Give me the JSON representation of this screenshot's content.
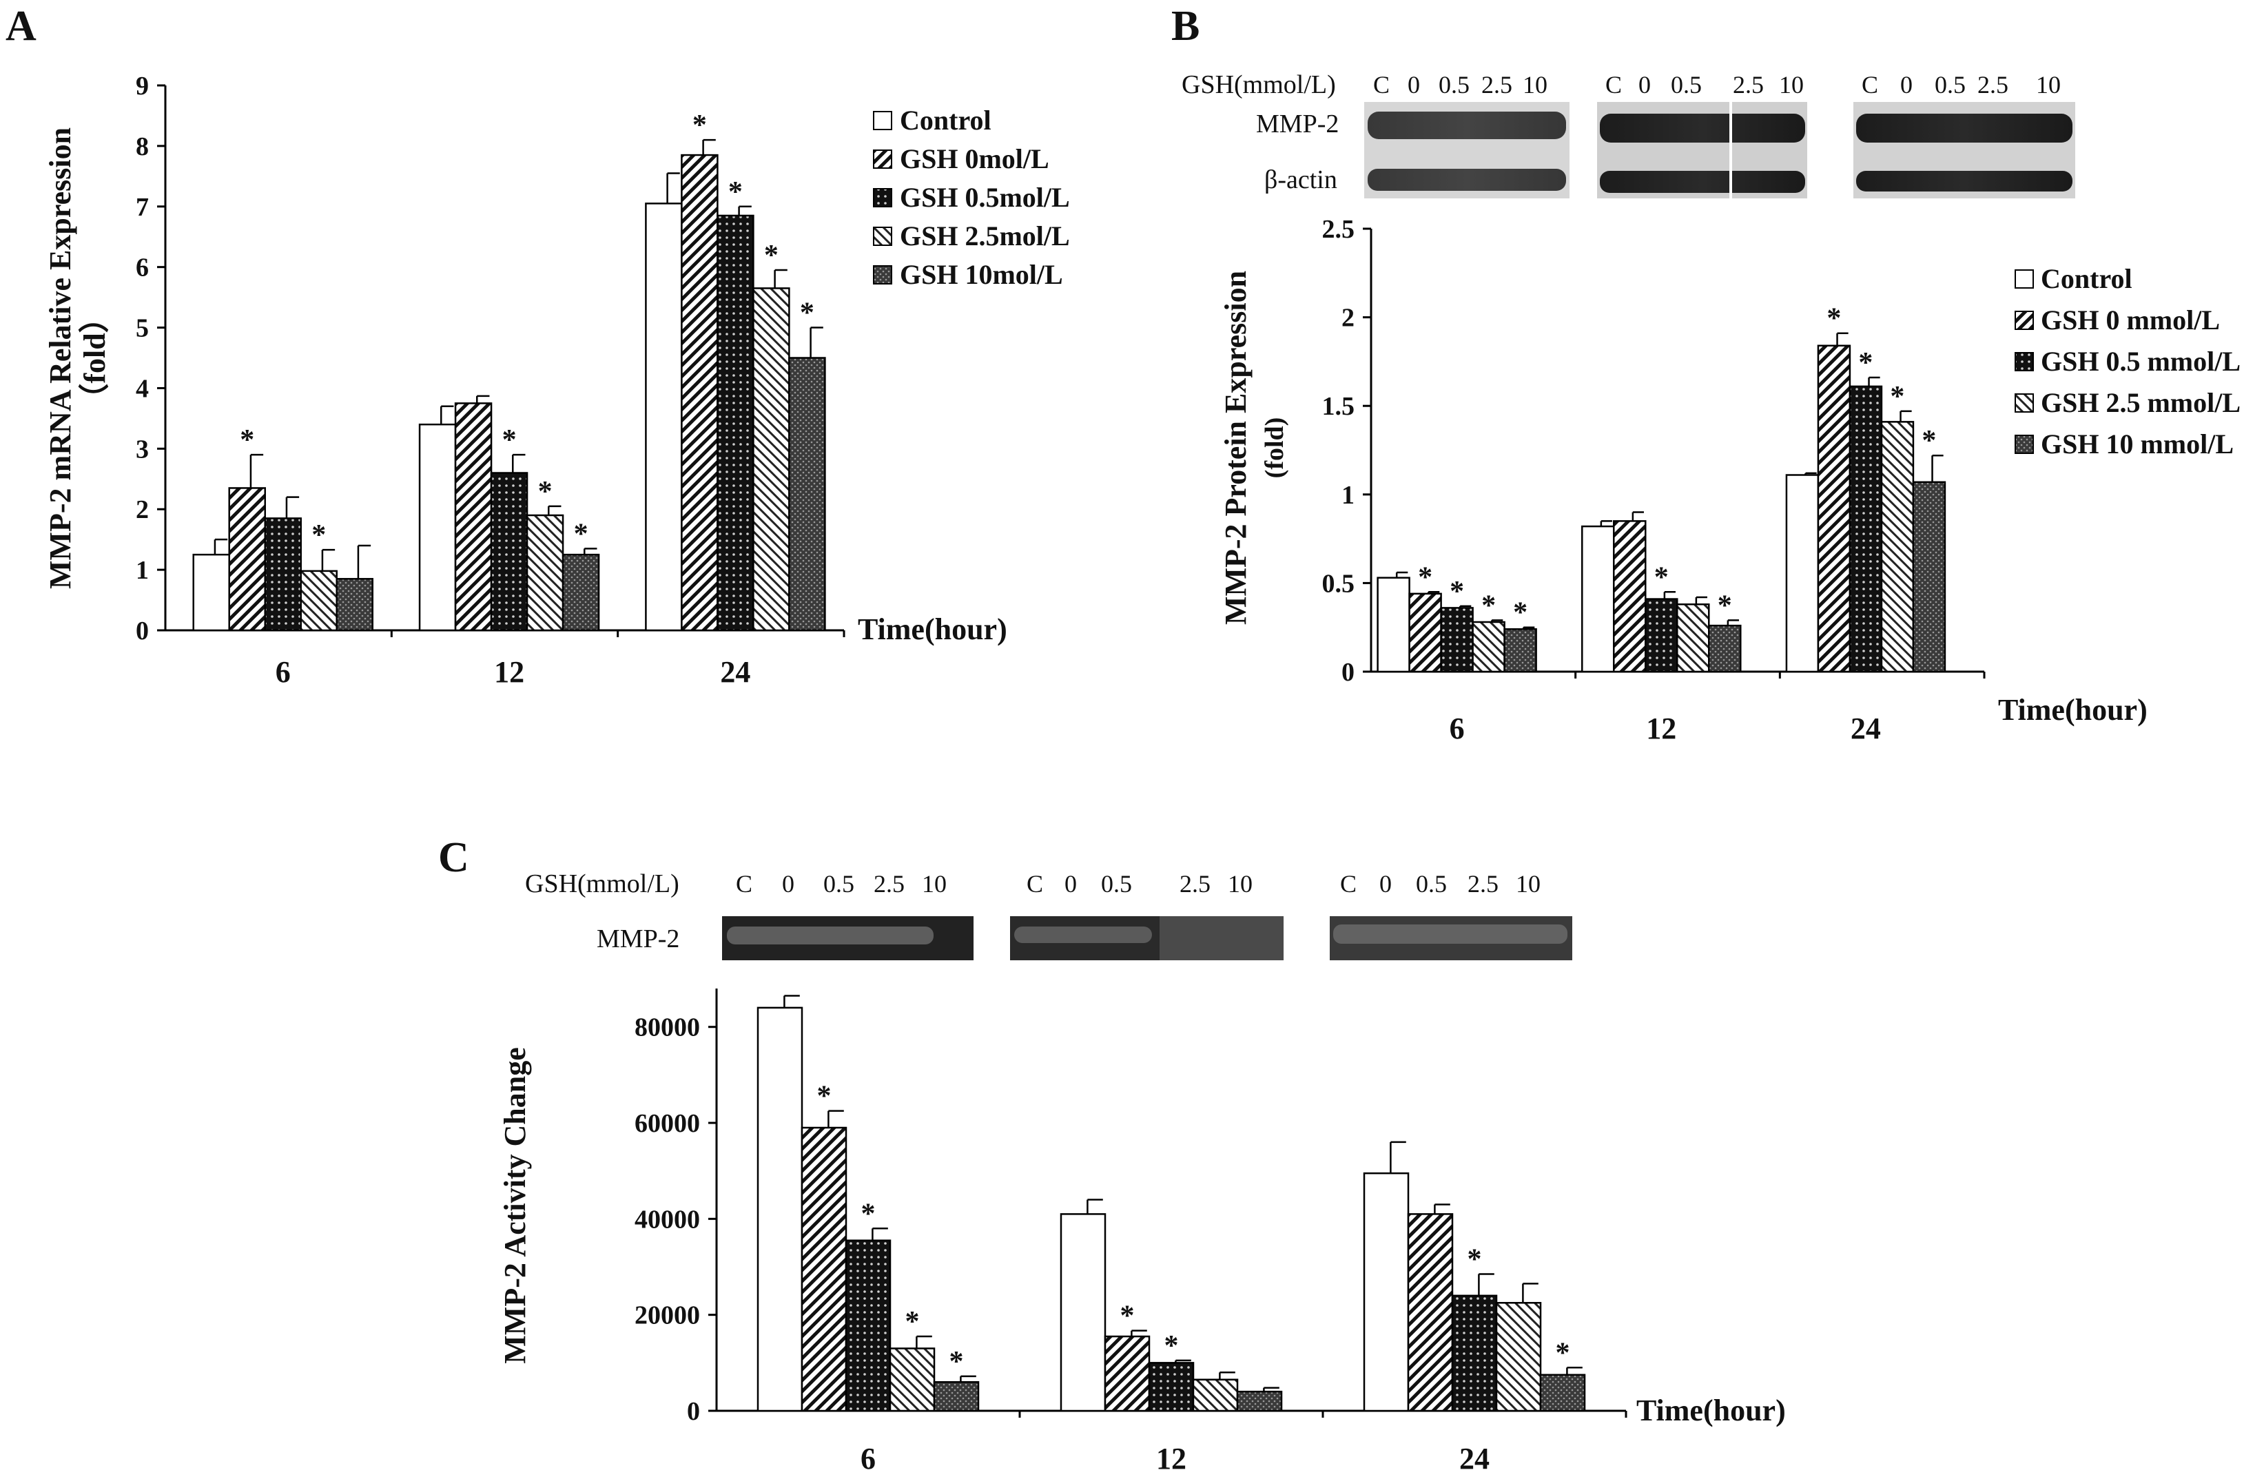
{
  "chart_data": [
    {
      "panel": "A",
      "type": "bar",
      "ylabel": "MMP-2 mRNA Relative Expression",
      "ylabel_unit": "（fold）",
      "xlabel": "Time(hour)",
      "categories": [
        "6",
        "12",
        "24"
      ],
      "ylim": [
        0,
        9
      ],
      "yticks": [
        "0",
        "1",
        "2",
        "3",
        "4",
        "5",
        "6",
        "7",
        "8",
        "9"
      ],
      "legend_position": "top-right",
      "series": [
        {
          "name": "Control",
          "pattern": "white",
          "values": [
            1.25,
            3.4,
            7.05
          ],
          "errors": [
            0.25,
            0.3,
            0.5
          ],
          "sig": [
            false,
            false,
            false
          ]
        },
        {
          "name": "GSH 0mol/L",
          "pattern": "diag",
          "values": [
            2.35,
            3.75,
            7.85
          ],
          "errors": [
            0.55,
            0.12,
            0.25
          ],
          "sig": [
            true,
            false,
            true
          ]
        },
        {
          "name": "GSH 0.5mol/L",
          "pattern": "black",
          "values": [
            1.85,
            2.6,
            6.85
          ],
          "errors": [
            0.35,
            0.3,
            0.15
          ],
          "sig": [
            false,
            true,
            true
          ]
        },
        {
          "name": "GSH 2.5mol/L",
          "pattern": "backdiag",
          "values": [
            0.98,
            1.9,
            5.65
          ],
          "errors": [
            0.35,
            0.15,
            0.3
          ],
          "sig": [
            true,
            true,
            true
          ]
        },
        {
          "name": "GSH 10mol/L",
          "pattern": "dark",
          "values": [
            0.85,
            1.25,
            4.5
          ],
          "errors": [
            0.55,
            0.1,
            0.5
          ],
          "sig": [
            false,
            true,
            true
          ]
        }
      ]
    },
    {
      "panel": "B",
      "type": "bar",
      "ylabel": "MMP-2 Protein Expression",
      "ylabel_unit": "(fold)",
      "xlabel": "Time(hour)",
      "categories": [
        "6",
        "12",
        "24"
      ],
      "ylim": [
        0,
        2.5
      ],
      "yticks": [
        "0",
        "0.5",
        "1",
        "1.5",
        "2",
        "2.5"
      ],
      "legend_position": "right",
      "series": [
        {
          "name": "Control",
          "pattern": "white",
          "values": [
            0.53,
            0.82,
            1.11
          ],
          "errors": [
            0.03,
            0.03,
            0.01
          ],
          "sig": [
            false,
            false,
            false
          ]
        },
        {
          "name": "GSH 0 mmol/L",
          "pattern": "diag",
          "values": [
            0.44,
            0.85,
            1.84
          ],
          "errors": [
            0.01,
            0.05,
            0.07
          ],
          "sig": [
            true,
            false,
            true
          ]
        },
        {
          "name": "GSH 0.5 mmol/L",
          "pattern": "black",
          "values": [
            0.36,
            0.41,
            1.61
          ],
          "errors": [
            0.01,
            0.04,
            0.05
          ],
          "sig": [
            true,
            true,
            true
          ]
        },
        {
          "name": "GSH 2.5 mmol/L",
          "pattern": "backdiag",
          "values": [
            0.28,
            0.38,
            1.41
          ],
          "errors": [
            0.01,
            0.04,
            0.06
          ],
          "sig": [
            true,
            false,
            true
          ]
        },
        {
          "name": "GSH 10 mmol/L",
          "pattern": "dark",
          "values": [
            0.24,
            0.26,
            1.07
          ],
          "errors": [
            0.01,
            0.03,
            0.15
          ],
          "sig": [
            true,
            true,
            true
          ]
        }
      ]
    },
    {
      "panel": "C",
      "type": "bar",
      "ylabel": "MMP-2 Activity Change",
      "xlabel": "Time(hour)",
      "categories": [
        "6",
        "12",
        "24"
      ],
      "ylim": [
        0,
        88000
      ],
      "yticks": [
        "0",
        "20000",
        "40000",
        "60000",
        "80000"
      ],
      "series": [
        {
          "name": "Control",
          "pattern": "white",
          "values": [
            84000,
            41000,
            49500
          ],
          "errors": [
            2500,
            3000,
            6500
          ],
          "sig": [
            false,
            false,
            false
          ]
        },
        {
          "name": "GSH 0 mmol/L",
          "pattern": "diag",
          "values": [
            59000,
            15500,
            41000
          ],
          "errors": [
            3500,
            1200,
            2000
          ],
          "sig": [
            true,
            true,
            false
          ]
        },
        {
          "name": "GSH 0.5 mmol/L",
          "pattern": "black",
          "values": [
            35500,
            10000,
            24000
          ],
          "errors": [
            2500,
            500,
            4500
          ],
          "sig": [
            true,
            true,
            true
          ]
        },
        {
          "name": "GSH 2.5 mmol/L",
          "pattern": "backdiag",
          "values": [
            13000,
            6500,
            22500
          ],
          "errors": [
            2500,
            1500,
            4000
          ],
          "sig": [
            true,
            false,
            false
          ]
        },
        {
          "name": "GSH 10 mmol/L",
          "pattern": "dark",
          "values": [
            6000,
            4000,
            7500
          ],
          "errors": [
            1200,
            800,
            1500
          ],
          "sig": [
            true,
            false,
            true
          ]
        }
      ]
    }
  ],
  "panels": {
    "a_letter": "A",
    "b_letter": "B",
    "c_letter": "C"
  },
  "blots": {
    "b_gsh_label": "GSH(mmol/L)",
    "b_row1": "MMP-2",
    "b_row2": "β-actin",
    "c_gsh_label": "GSH(mmol/L)",
    "c_row1": "MMP-2",
    "lanes": [
      "C",
      "0",
      "0.5",
      "2.5",
      "10"
    ]
  },
  "significance_mark": "*"
}
